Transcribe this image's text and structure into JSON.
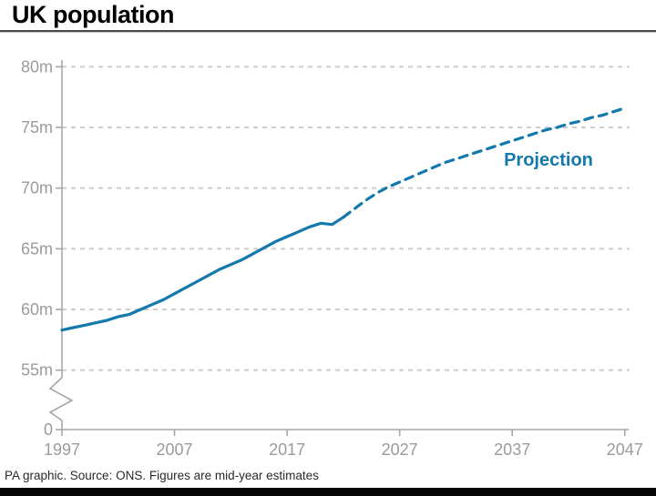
{
  "header": {
    "title": "UK population"
  },
  "footer": {
    "credit": "PA graphic. Source: ONS. Figures are mid-year estimates"
  },
  "colors": {
    "line": "#1379ac",
    "annotation": "#1379ac",
    "grid": "#cdcdcd",
    "axis": "#a6a6a6",
    "tick_text": "#9b9b9b",
    "title_text": "#000000",
    "footer_text": "#2a2a2a",
    "bottom_bar": "#060606"
  },
  "chart_data": {
    "type": "line",
    "title": "UK population",
    "xlabel": "",
    "ylabel": "",
    "unit": "millions",
    "grid": "dashed-horizontal",
    "y_axis": {
      "has_break": true,
      "zero_label": "0",
      "ticks": [
        {
          "value": 55,
          "label": "55m"
        },
        {
          "value": 60,
          "label": "60m"
        },
        {
          "value": 65,
          "label": "65m"
        },
        {
          "value": 70,
          "label": "70m"
        },
        {
          "value": 75,
          "label": "75m"
        },
        {
          "value": 80,
          "label": "80m"
        }
      ],
      "range_shown": [
        55,
        80
      ]
    },
    "x_axis": {
      "ticks": [
        {
          "year": 1997,
          "label": "1997"
        },
        {
          "year": 2007,
          "label": "2007"
        },
        {
          "year": 2017,
          "label": "2017"
        },
        {
          "year": 2027,
          "label": "2027"
        },
        {
          "year": 2037,
          "label": "2037"
        },
        {
          "year": 2047,
          "label": "2047"
        }
      ],
      "range": [
        1997,
        2047
      ]
    },
    "series": [
      {
        "name": "Mid-year estimates",
        "style": "solid",
        "x": [
          1997,
          1998,
          1999,
          2000,
          2001,
          2002,
          2003,
          2004,
          2005,
          2006,
          2007,
          2008,
          2009,
          2010,
          2011,
          2012,
          2013,
          2014,
          2015,
          2016,
          2017,
          2018,
          2019,
          2020,
          2021,
          2022
        ],
        "values": [
          58.3,
          58.5,
          58.7,
          58.9,
          59.1,
          59.4,
          59.6,
          60.0,
          60.4,
          60.8,
          61.3,
          61.8,
          62.3,
          62.8,
          63.3,
          63.7,
          64.1,
          64.6,
          65.1,
          65.6,
          66.0,
          66.4,
          66.8,
          67.1,
          67.0,
          67.6
        ]
      },
      {
        "name": "Projection",
        "style": "dashed",
        "x": [
          2022,
          2023,
          2024,
          2025,
          2026,
          2027,
          2028,
          2029,
          2030,
          2031,
          2032,
          2033,
          2034,
          2035,
          2036,
          2037,
          2038,
          2039,
          2040,
          2041,
          2042,
          2043,
          2044,
          2045,
          2046,
          2047
        ],
        "values": [
          67.6,
          68.3,
          69.0,
          69.6,
          70.1,
          70.5,
          70.9,
          71.3,
          71.7,
          72.1,
          72.4,
          72.7,
          73.0,
          73.3,
          73.6,
          73.9,
          74.2,
          74.5,
          74.8,
          75.0,
          75.3,
          75.5,
          75.8,
          76.0,
          76.3,
          76.6
        ]
      }
    ],
    "annotation": {
      "text": "Projection"
    }
  }
}
